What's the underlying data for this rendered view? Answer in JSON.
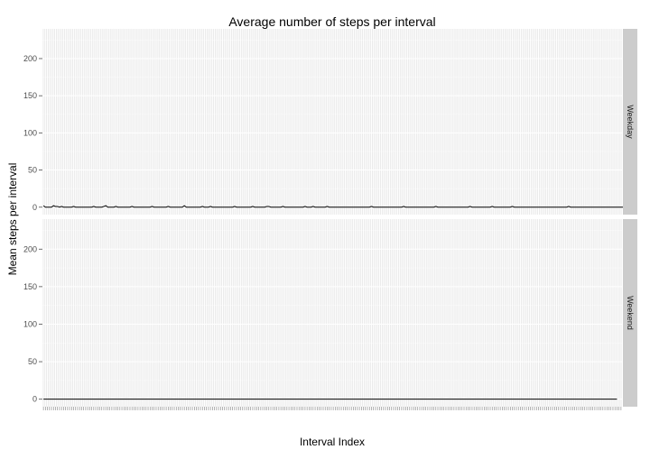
{
  "chart_data": {
    "type": "line",
    "title": "Average number of steps per interval",
    "xlabel": "Interval Index",
    "ylabel": "Mean steps per interval",
    "ylim": [
      -10,
      240
    ],
    "yticks": [
      0,
      50,
      100,
      150,
      200
    ],
    "x_count": 288,
    "grid": true,
    "legend": "none",
    "facets": [
      {
        "label": "Weekday",
        "y": [
          2,
          0,
          0,
          0,
          0,
          2,
          1,
          1,
          0,
          1,
          0,
          0,
          0,
          0,
          0,
          1,
          0,
          0,
          0,
          0,
          0,
          0,
          0,
          0,
          0,
          1,
          0,
          0,
          0,
          0,
          1,
          2,
          0,
          0,
          0,
          0,
          1,
          0,
          0,
          0,
          0,
          0,
          0,
          0,
          1,
          0,
          0,
          0,
          0,
          0,
          0,
          0,
          0,
          0,
          1,
          0,
          0,
          0,
          0,
          0,
          0,
          0,
          1,
          0,
          0,
          0,
          0,
          0,
          0,
          0,
          2,
          0,
          0,
          0,
          0,
          0,
          0,
          0,
          0,
          1,
          0,
          0,
          0,
          1,
          0,
          0,
          0,
          0,
          0,
          0,
          0,
          0,
          0,
          0,
          0,
          1,
          0,
          0,
          0,
          0,
          0,
          0,
          0,
          0,
          1,
          0,
          0,
          0,
          0,
          0,
          0,
          1,
          1,
          0,
          0,
          0,
          0,
          0,
          0,
          1,
          0,
          0,
          0,
          0,
          0,
          0,
          0,
          0,
          0,
          0,
          1,
          0,
          0,
          0,
          1,
          0,
          0,
          0,
          0,
          0,
          0,
          1,
          0,
          0,
          0,
          0,
          0,
          0,
          0,
          0,
          0,
          0,
          0,
          0,
          0,
          0,
          0,
          0,
          0,
          0,
          0,
          0,
          0,
          1,
          0,
          0,
          0,
          0,
          0,
          0,
          0,
          0,
          0,
          0,
          0,
          0,
          0,
          0,
          0,
          1,
          0,
          0,
          0,
          0,
          0,
          0,
          0,
          0,
          0,
          0,
          0,
          0,
          0,
          0,
          0,
          1,
          0,
          0,
          0,
          0,
          0,
          0,
          0,
          0,
          0,
          0,
          0,
          0,
          0,
          0,
          0,
          0,
          1,
          0,
          0,
          0,
          0,
          0,
          0,
          0,
          0,
          0,
          0,
          1,
          0,
          0,
          0,
          0,
          0,
          0,
          0,
          0,
          0,
          1,
          0,
          0,
          0,
          0,
          0,
          0,
          0,
          0,
          0,
          0,
          0,
          0,
          0,
          0,
          0,
          0,
          0,
          0,
          0,
          0,
          0,
          0,
          0,
          0,
          0,
          0,
          0,
          1,
          0,
          0,
          0,
          0,
          0,
          0,
          0,
          0,
          0,
          0,
          0,
          0,
          0,
          0,
          0,
          0,
          0,
          0,
          0,
          0,
          0,
          0,
          0,
          0,
          0,
          0,
          0,
          0,
          1,
          0
        ]
      },
      {
        "label": "Weekend",
        "y": [
          0,
          0,
          0,
          0,
          0,
          0,
          0,
          0,
          0,
          0,
          0,
          0,
          0,
          0,
          0,
          0,
          0,
          0,
          0,
          0,
          0,
          0,
          0,
          0,
          0,
          0,
          0,
          0,
          0,
          0,
          0,
          0,
          0,
          0,
          0,
          0,
          0,
          0,
          0,
          0,
          0,
          0,
          0,
          0,
          0,
          0,
          0,
          0,
          0,
          0,
          0,
          0,
          0,
          0,
          0,
          0,
          0,
          0,
          0,
          0,
          0,
          0,
          0,
          0,
          0,
          0,
          0,
          0,
          0,
          0,
          0,
          0,
          0,
          0,
          0,
          0,
          0,
          0,
          0,
          0,
          0,
          0,
          0,
          0,
          0,
          0,
          0,
          0,
          0,
          0,
          0,
          0,
          0,
          0,
          0,
          0,
          0,
          0,
          0,
          0,
          0,
          0,
          0,
          0,
          0,
          0,
          0,
          0,
          0,
          0,
          0,
          0,
          0,
          0,
          0,
          0,
          0,
          0,
          0,
          0,
          0,
          0,
          0,
          0,
          0,
          0,
          0,
          0,
          0,
          0,
          0,
          0,
          0,
          0,
          0,
          0,
          0,
          0,
          0,
          0,
          0,
          0,
          0,
          0,
          0,
          0,
          0,
          0,
          0,
          0,
          0,
          0,
          0,
          0,
          0,
          0,
          0,
          0,
          0,
          0,
          0,
          0,
          0,
          0,
          0,
          0,
          0,
          0,
          0,
          0,
          0,
          0,
          0,
          0,
          0,
          0,
          0,
          0,
          0,
          0,
          0,
          0,
          0,
          0,
          0,
          0,
          0,
          0,
          0,
          0,
          0,
          0,
          0,
          0,
          0,
          0,
          0,
          0,
          0,
          0,
          0,
          0,
          0,
          0,
          0,
          0,
          0,
          0,
          0,
          0,
          0,
          0,
          0,
          0,
          0,
          0,
          0,
          0,
          0,
          0,
          0,
          0,
          0,
          0,
          0,
          0,
          0,
          0,
          0,
          0,
          0,
          0,
          0,
          0,
          0,
          0,
          0,
          0,
          0,
          0,
          0,
          0,
          0,
          0,
          0,
          0,
          0,
          0,
          0,
          0,
          0,
          0,
          0,
          0,
          0,
          0,
          0,
          0,
          0,
          0,
          0,
          0,
          0,
          0,
          0,
          0,
          0,
          0,
          0,
          0,
          0,
          0,
          0,
          0,
          0,
          0,
          0,
          0,
          0,
          0,
          0,
          0,
          0,
          0,
          0,
          0
        ]
      }
    ]
  },
  "colors": {
    "panel_bg": "#ebebeb",
    "grid_major": "#ffffff",
    "grid_minor": "#f5f5f5",
    "strip_bg": "#cccccc",
    "line": "#000000"
  }
}
